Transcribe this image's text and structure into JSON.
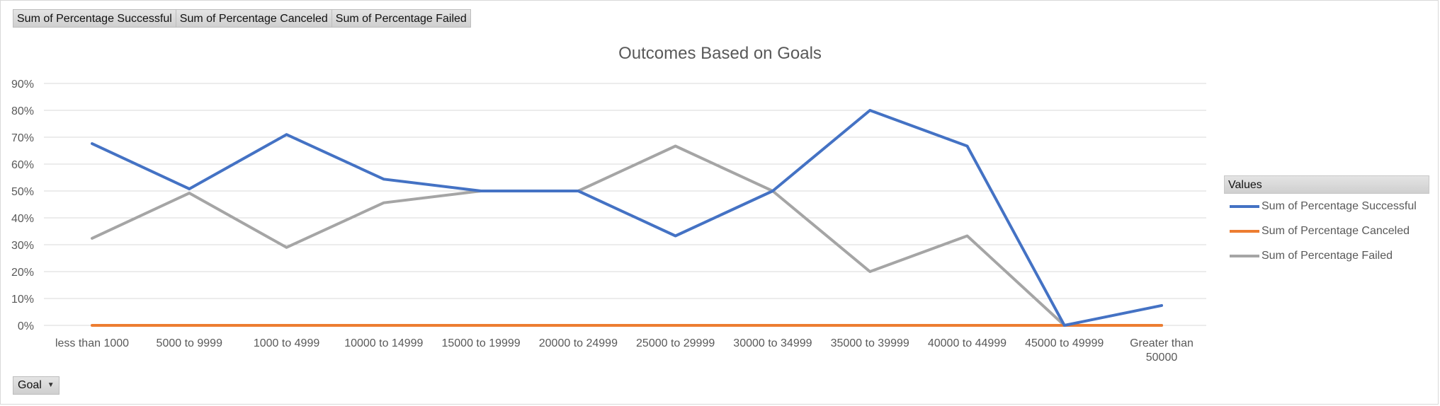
{
  "field_buttons": [
    "Sum of Percentage Successful",
    "Sum of Percentage Canceled",
    "Sum of Percentage Failed"
  ],
  "axis_button": {
    "label": "Goal",
    "icon": "dropdown-arrow-icon"
  },
  "legend": {
    "header": "Values"
  },
  "chart_data": {
    "type": "line",
    "title": "Outcomes Based on Goals",
    "categories": [
      "less than 1000",
      "5000 to 9999",
      "1000 to 4999",
      "10000 to 14999",
      "15000 to 19999",
      "20000 to 24999",
      "25000 to 29999",
      "30000 to 34999",
      "35000 to 39999",
      "40000 to 44999",
      "45000 to 49999",
      "Greater than 50000"
    ],
    "y_ticks": [
      "0%",
      "10%",
      "20%",
      "30%",
      "40%",
      "50%",
      "60%",
      "70%",
      "80%",
      "90%"
    ],
    "ylim": [
      0,
      0.9
    ],
    "grid": true,
    "legend_position": "right",
    "series": [
      {
        "name": "Sum of Percentage Successful",
        "color": "#4472C4",
        "values": [
          0.676,
          0.508,
          0.71,
          0.544,
          0.5,
          0.5,
          0.333,
          0.5,
          0.8,
          0.667,
          0.0,
          0.074
        ]
      },
      {
        "name": "Sum of Percentage Canceled",
        "color": "#ED7D31",
        "values": [
          0,
          0,
          0,
          0,
          0,
          0,
          0,
          0,
          0,
          0,
          0,
          0
        ]
      },
      {
        "name": "Sum of Percentage Failed",
        "color": "#A5A5A5",
        "values": [
          0.324,
          0.492,
          0.29,
          0.456,
          0.5,
          0.5,
          0.667,
          0.5,
          0.2,
          0.333,
          0.0,
          0.0
        ]
      }
    ]
  }
}
